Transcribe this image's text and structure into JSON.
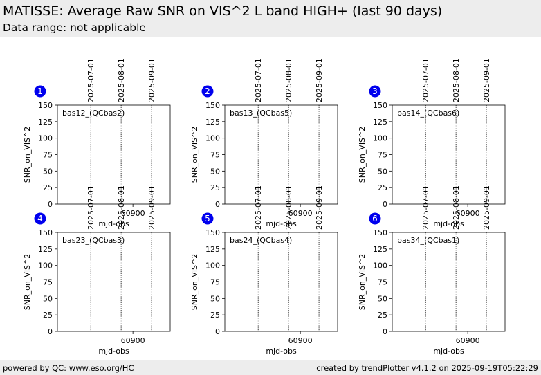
{
  "header": {
    "title": "MATISSE: Average Raw SNR on VIS^2 L band HIGH+ (last 90 days)",
    "subtitle": "Data range: not applicable"
  },
  "footer": {
    "left": "powered by QC: www.eso.org/HC",
    "right": "created by trendPlotter v4.1.2 on 2025-09-19T05:22:29"
  },
  "colors": {
    "panel_badge": "#0000ee",
    "header_bg": "#ededed"
  },
  "chart_data": [
    {
      "type": "line",
      "panel_number": "1",
      "label": "bas12_(QCbas2)",
      "xlabel": "mjd-obs",
      "ylabel": "SNR_on_VIS^2",
      "ylim": [
        0,
        150
      ],
      "yticks": [
        0,
        25,
        50,
        75,
        100,
        125,
        150
      ],
      "xlim": [
        60823,
        60938
      ],
      "xticks": [
        {
          "value": 60900,
          "label": "60900"
        }
      ],
      "date_markers": [
        {
          "mjd": 60857,
          "label": "2025-07-01"
        },
        {
          "mjd": 60888,
          "label": "2025-08-01"
        },
        {
          "mjd": 60919,
          "label": "2025-09-01"
        }
      ],
      "series": []
    },
    {
      "type": "line",
      "panel_number": "2",
      "label": "bas13_(QCbas5)",
      "xlabel": "mjd-obs",
      "ylabel": "SNR_on_VIS^2",
      "ylim": [
        0,
        150
      ],
      "yticks": [
        0,
        25,
        50,
        75,
        100,
        125,
        150
      ],
      "xlim": [
        60823,
        60938
      ],
      "xticks": [
        {
          "value": 60900,
          "label": "60900"
        }
      ],
      "date_markers": [
        {
          "mjd": 60857,
          "label": "2025-07-01"
        },
        {
          "mjd": 60888,
          "label": "2025-08-01"
        },
        {
          "mjd": 60919,
          "label": "2025-09-01"
        }
      ],
      "series": []
    },
    {
      "type": "line",
      "panel_number": "3",
      "label": "bas14_(QCbas6)",
      "xlabel": "mjd-obs",
      "ylabel": "SNR_on_VIS^2",
      "ylim": [
        0,
        150
      ],
      "yticks": [
        0,
        25,
        50,
        75,
        100,
        125,
        150
      ],
      "xlim": [
        60823,
        60938
      ],
      "xticks": [
        {
          "value": 60900,
          "label": "60900"
        }
      ],
      "date_markers": [
        {
          "mjd": 60857,
          "label": "2025-07-01"
        },
        {
          "mjd": 60888,
          "label": "2025-08-01"
        },
        {
          "mjd": 60919,
          "label": "2025-09-01"
        }
      ],
      "series": []
    },
    {
      "type": "line",
      "panel_number": "4",
      "label": "bas23_(QCbas3)",
      "xlabel": "mjd-obs",
      "ylabel": "SNR_on_VIS^2",
      "ylim": [
        0,
        150
      ],
      "yticks": [
        0,
        25,
        50,
        75,
        100,
        125,
        150
      ],
      "xlim": [
        60823,
        60938
      ],
      "xticks": [
        {
          "value": 60900,
          "label": "60900"
        }
      ],
      "date_markers": [
        {
          "mjd": 60857,
          "label": "2025-07-01"
        },
        {
          "mjd": 60888,
          "label": "2025-08-01"
        },
        {
          "mjd": 60919,
          "label": "2025-09-01"
        }
      ],
      "series": []
    },
    {
      "type": "line",
      "panel_number": "5",
      "label": "bas24_(QCbas4)",
      "xlabel": "mjd-obs",
      "ylabel": "SNR_on_VIS^2",
      "ylim": [
        0,
        150
      ],
      "yticks": [
        0,
        25,
        50,
        75,
        100,
        125,
        150
      ],
      "xlim": [
        60823,
        60938
      ],
      "xticks": [
        {
          "value": 60900,
          "label": "60900"
        }
      ],
      "date_markers": [
        {
          "mjd": 60857,
          "label": "2025-07-01"
        },
        {
          "mjd": 60888,
          "label": "2025-08-01"
        },
        {
          "mjd": 60919,
          "label": "2025-09-01"
        }
      ],
      "series": []
    },
    {
      "type": "line",
      "panel_number": "6",
      "label": "bas34_(QCbas1)",
      "xlabel": "mjd-obs",
      "ylabel": "SNR_on_VIS^2",
      "ylim": [
        0,
        150
      ],
      "yticks": [
        0,
        25,
        50,
        75,
        100,
        125,
        150
      ],
      "xlim": [
        60823,
        60938
      ],
      "xticks": [
        {
          "value": 60900,
          "label": "60900"
        }
      ],
      "date_markers": [
        {
          "mjd": 60857,
          "label": "2025-07-01"
        },
        {
          "mjd": 60888,
          "label": "2025-08-01"
        },
        {
          "mjd": 60919,
          "label": "2025-09-01"
        }
      ],
      "series": []
    }
  ]
}
